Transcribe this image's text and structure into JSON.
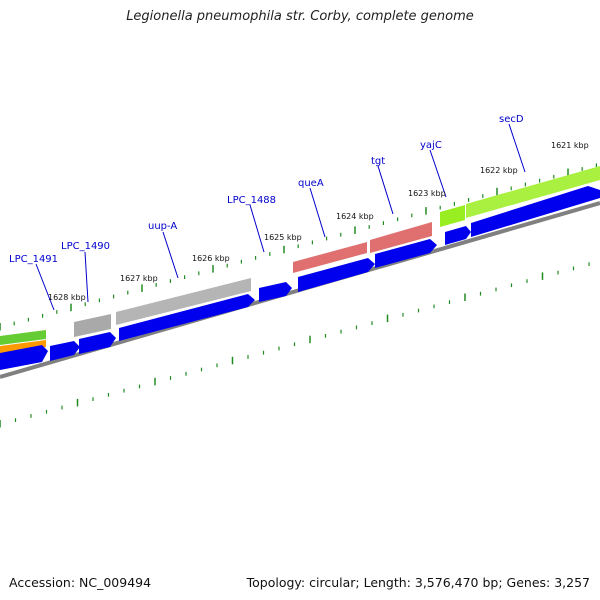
{
  "title": "Legionella pneumophila str. Corby, complete genome",
  "footer": {
    "accession": "Accession: NC_009494",
    "topology": "Topology: circular; Length: 3,576,470 bp; Genes: 3,257"
  },
  "tick_labels": [
    {
      "text": "1628 kbp",
      "kbp": 1628
    },
    {
      "text": "1627 kbp",
      "kbp": 1627
    },
    {
      "text": "1626 kbp",
      "kbp": 1626
    },
    {
      "text": "1625 kbp",
      "kbp": 1625
    },
    {
      "text": "1624 kbp",
      "kbp": 1624
    },
    {
      "text": "1623 kbp",
      "kbp": 1623
    },
    {
      "text": "1622 kbp",
      "kbp": 1622
    },
    {
      "text": "1621 kbp",
      "kbp": 1621
    }
  ],
  "gene_labels": [
    "LPC_1491",
    "LPC_1490",
    "uup-A",
    "LPC_1488",
    "queA",
    "tgt",
    "yajC",
    "secD"
  ],
  "colors": {
    "cds": "#0000ee",
    "gray_feature": "#a9a9a9",
    "red_feature": "#e06060",
    "green_feature": "#99ee22",
    "orange_feature": "#ff9900",
    "backbone": "#808080",
    "tick": "#228b22",
    "label": "#0000cc"
  }
}
